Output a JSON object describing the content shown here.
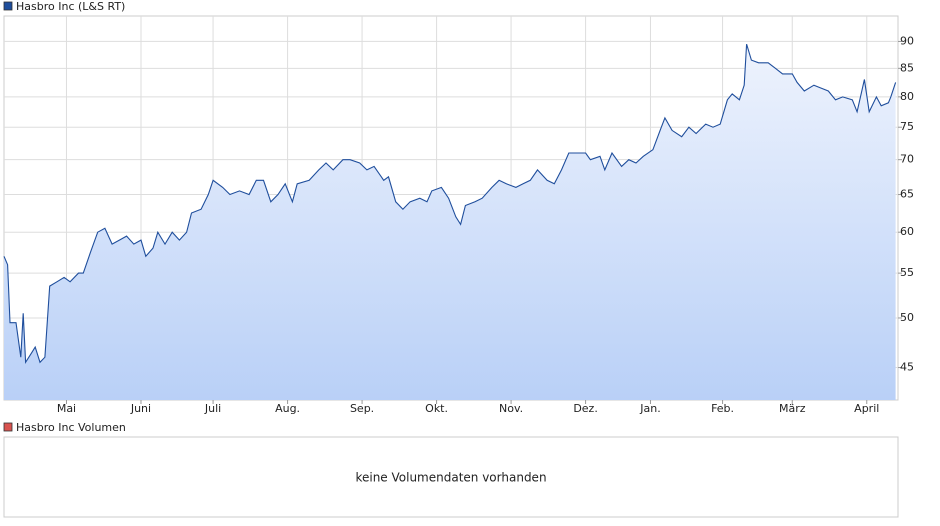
{
  "chart_data": {
    "type": "line",
    "log_scale": true,
    "grid": true,
    "series": [
      {
        "name": "Hasbro Inc (L&S RT)",
        "color": "#1f4e9c",
        "x": [
          0,
          1.5,
          2.5,
          5,
          7,
          8,
          9,
          11.7,
          13,
          15,
          17,
          19,
          22,
          25,
          27.5,
          31,
          33,
          36,
          39,
          42,
          45,
          48,
          51,
          54,
          57,
          59,
          62,
          64,
          67,
          70,
          73,
          76,
          78,
          82,
          85,
          87,
          91,
          94,
          98,
          102,
          105,
          108,
          111,
          114,
          117,
          120,
          122,
          127,
          131,
          134,
          137,
          141,
          144,
          148,
          151,
          154,
          158,
          160,
          163,
          166,
          169,
          173,
          176,
          178,
          182,
          185,
          188,
          190,
          192,
          196,
          199,
          203,
          206,
          209,
          213,
          216,
          219,
          222,
          226,
          229,
          232,
          235,
          238,
          242,
          244,
          248,
          250,
          253,
          257,
          260,
          263,
          266,
          270,
          273,
          275,
          278,
          282,
          285,
          288,
          292,
          295,
          298,
          301,
          303,
          306,
          308,
          309,
          311,
          314,
          318,
          321,
          324,
          328,
          330,
          333,
          337,
          340,
          343,
          346,
          349,
          353,
          355,
          358,
          360,
          363,
          365,
          368,
          369,
          371
        ],
        "values": [
          57,
          56,
          49.5,
          49.5,
          46,
          50.5,
          45.5,
          46.5,
          47,
          45.5,
          46,
          53.5,
          54,
          54.5,
          54,
          55,
          55,
          57.5,
          60,
          60.5,
          58.5,
          59,
          59.5,
          58.5,
          59,
          57,
          58,
          60,
          58.5,
          60,
          59,
          60,
          62.5,
          63,
          65,
          67,
          66,
          65,
          65.5,
          65,
          67,
          67,
          64,
          65,
          66.5,
          64,
          66.5,
          67,
          68.5,
          69.5,
          68.5,
          70,
          70,
          69.5,
          68.5,
          69,
          67,
          67.5,
          64,
          63,
          64,
          64.5,
          64,
          65.5,
          66,
          64.5,
          62,
          61,
          63.5,
          64,
          64.5,
          66,
          67,
          66.5,
          66,
          66.5,
          67,
          68.5,
          67,
          66.5,
          68.5,
          71,
          71,
          71,
          70,
          70.5,
          68.5,
          71,
          69,
          70,
          69.5,
          70.5,
          71.5,
          74.5,
          76.5,
          74.5,
          73.5,
          75,
          74,
          75.5,
          75,
          75.5,
          79.5,
          80.5,
          79.5,
          82,
          89.5,
          86.5,
          86,
          86,
          85,
          84,
          84,
          82.5,
          81,
          82,
          81.5,
          81,
          79.5,
          80,
          79.5,
          77.5,
          83,
          77.5,
          80,
          78.5,
          79,
          80,
          82.5
        ]
      }
    ],
    "xlim": [
      0,
      372
    ],
    "xticks": [
      {
        "value": 26,
        "label": "Mai"
      },
      {
        "value": 57,
        "label": "Juni"
      },
      {
        "value": 87,
        "label": "Juli"
      },
      {
        "value": 118,
        "label": "Aug."
      },
      {
        "value": 149,
        "label": "Sep."
      },
      {
        "value": 180,
        "label": "Okt."
      },
      {
        "value": 211,
        "label": "Nov."
      },
      {
        "value": 242,
        "label": "Dez."
      },
      {
        "value": 269,
        "label": "Jan."
      },
      {
        "value": 299,
        "label": "Feb."
      },
      {
        "value": 328,
        "label": "März"
      },
      {
        "value": 359,
        "label": "April"
      }
    ],
    "ylim": [
      42,
      95
    ],
    "yticks": [
      45,
      50,
      55,
      60,
      65,
      70,
      75,
      80,
      85,
      90
    ]
  },
  "volume_panel": {
    "legend": "Hasbro Inc Volumen",
    "color": "#d9534f",
    "message": "keine Volumendaten vorhanden"
  }
}
